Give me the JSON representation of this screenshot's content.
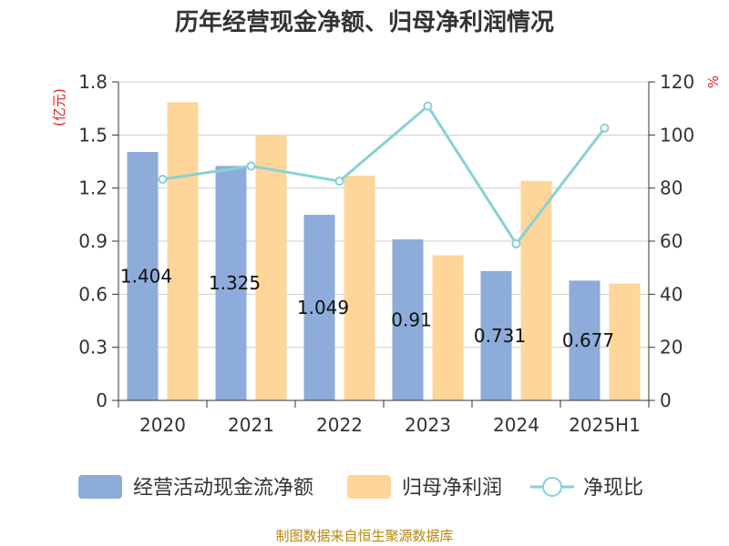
{
  "chart_data": {
    "type": "bar",
    "title": "历年经营现金净额、归母净利润情况",
    "categories": [
      "2020",
      "2021",
      "2022",
      "2023",
      "2024",
      "2025H1"
    ],
    "y_left": {
      "unit": "(亿元)",
      "ticks": [
        "0",
        "0.3",
        "0.6",
        "0.9",
        "1.2",
        "1.5",
        "1.8"
      ],
      "ylim": [
        0,
        1.8
      ]
    },
    "y_right": {
      "unit": "%",
      "ticks": [
        "0",
        "20",
        "40",
        "60",
        "80",
        "100",
        "120"
      ],
      "ylim": [
        0,
        120
      ]
    },
    "series": [
      {
        "name": "经营活动现金流净额",
        "type": "bar",
        "axis": "left",
        "color": "#8eacd9",
        "values": [
          1.404,
          1.325,
          1.049,
          0.91,
          0.731,
          0.677
        ],
        "labels": [
          "1.404",
          "1.325",
          "1.049",
          "0.91",
          "0.731",
          "0.677"
        ]
      },
      {
        "name": "归母净利润",
        "type": "bar",
        "axis": "left",
        "color": "#ffd699",
        "values": [
          1.685,
          1.5,
          1.27,
          0.82,
          1.24,
          0.66
        ]
      },
      {
        "name": "净现比",
        "type": "line",
        "axis": "right",
        "color": "#88d1d6",
        "values": [
          83.3,
          88.3,
          82.6,
          110.9,
          59.0,
          102.6
        ]
      }
    ],
    "grid": true,
    "legend": "bottom"
  },
  "footer": {
    "source": "制图数据来自恒生聚源数据库"
  }
}
